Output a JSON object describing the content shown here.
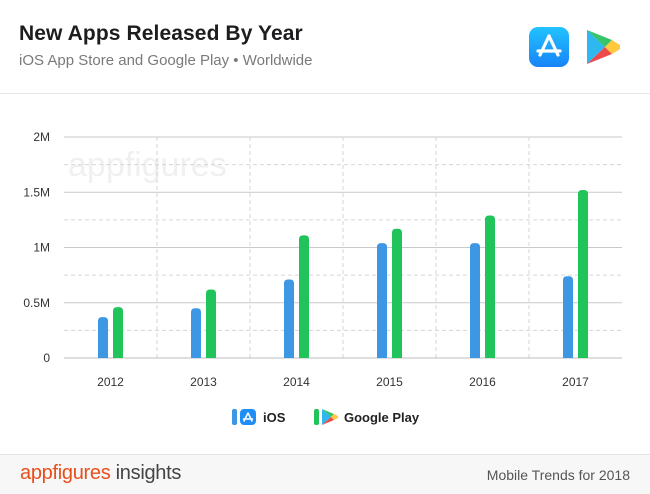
{
  "header": {
    "title": "New Apps Released By Year",
    "subtitle": "iOS App Store and Google Play • Worldwide",
    "ios_logo_icon": "app-store-icon",
    "play_logo_icon": "google-play-icon"
  },
  "watermark": "appfigures",
  "chart_data": {
    "type": "bar",
    "title": "New Apps Released By Year",
    "subtitle": "iOS App Store and Google Play • Worldwide",
    "categories": [
      "2012",
      "2013",
      "2014",
      "2015",
      "2016",
      "2017"
    ],
    "series": [
      {
        "name": "iOS",
        "color": "#3d97e3",
        "values": [
          0.37,
          0.45,
          0.71,
          1.04,
          1.04,
          0.74
        ]
      },
      {
        "name": "Google Play",
        "color": "#20c45a",
        "values": [
          0.46,
          0.62,
          1.11,
          1.17,
          1.29,
          1.52
        ]
      }
    ],
    "ylim": [
      0,
      2
    ],
    "y_ticks": [
      0,
      0.5,
      1,
      1.5,
      2
    ],
    "y_tick_labels": [
      "0",
      "0.5M",
      "1M",
      "1.5M",
      "2M"
    ],
    "unit": "millions of apps",
    "grid": true,
    "legend_placement": "bottom-center"
  },
  "footer": {
    "brand_part1": "appfigures",
    "brand_part2": " insights",
    "right_text": "Mobile Trends for 2018"
  }
}
